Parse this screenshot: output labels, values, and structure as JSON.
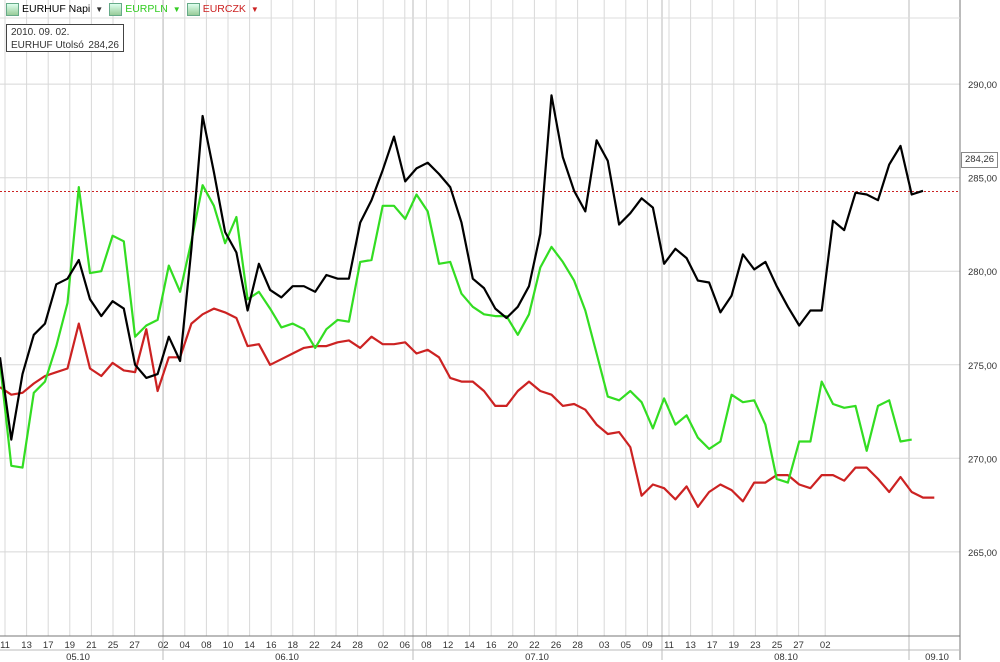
{
  "legend": [
    {
      "label": "EURHUF Napi",
      "color": "#000000"
    },
    {
      "label": "EURPLN",
      "color": "#33dd22"
    },
    {
      "label": "EURCZK",
      "color": "#cc2222"
    }
  ],
  "info": {
    "date": "2010. 09. 02.",
    "label": "EURHUF Utolsó",
    "value": "284,26"
  },
  "last_value_label": "284,26",
  "chart_data": {
    "type": "line",
    "y_ticks": [
      "265,00",
      "270,00",
      "275,00",
      "280,00",
      "285,00",
      "290,00"
    ],
    "y_tick_values": [
      265,
      270,
      275,
      280,
      285,
      290
    ],
    "ylim": [
      260.5,
      294.5
    ],
    "day_labels": [
      "11",
      "13",
      "17",
      "19",
      "21",
      "25",
      "27",
      "02",
      "04",
      "08",
      "10",
      "14",
      "16",
      "18",
      "22",
      "24",
      "28",
      "02",
      "06",
      "08",
      "12",
      "14",
      "16",
      "20",
      "22",
      "26",
      "28",
      "03",
      "05",
      "09",
      "11",
      "13",
      "17",
      "19",
      "23",
      "25",
      "27",
      "02"
    ],
    "month_labels": [
      {
        "label": "05.10",
        "after_day_index": 0,
        "span": [
          0,
          6
        ]
      },
      {
        "label": "06.10",
        "span": [
          7,
          16
        ]
      },
      {
        "label": "07.10",
        "span": [
          17,
          26
        ]
      },
      {
        "label": "08.10",
        "span": [
          27,
          36
        ]
      },
      {
        "label": "09.10",
        "span": [
          37,
          37
        ]
      }
    ],
    "reference_line": 284.26,
    "series": [
      {
        "name": "EURHUF Napi",
        "color": "#000000",
        "values": [
          275.4,
          271.0,
          274.5,
          276.6,
          277.2,
          279.3,
          279.6,
          280.6,
          278.5,
          277.6,
          278.4,
          278.0,
          275.0,
          274.3,
          274.5,
          276.5,
          275.2,
          281.2,
          288.3,
          285.3,
          282.1,
          281.0,
          277.9,
          280.4,
          279.0,
          278.6,
          279.2,
          279.2,
          278.9,
          279.8,
          279.6,
          279.6,
          282.6,
          283.8,
          285.4,
          287.2,
          284.8,
          285.5,
          285.8,
          285.2,
          284.5,
          282.6,
          279.6,
          279.1,
          278.0,
          277.5,
          278.1,
          279.2,
          282.0,
          289.4,
          286.1,
          284.3,
          283.2,
          287.0,
          285.9,
          282.5,
          283.1,
          283.9,
          283.4,
          280.4,
          281.2,
          280.7,
          279.5,
          279.4,
          277.8,
          278.7,
          280.9,
          280.1,
          280.5,
          279.2,
          278.1,
          277.1,
          277.9,
          277.9,
          282.7,
          282.2,
          284.2,
          284.1,
          283.8,
          285.7,
          286.7,
          284.1,
          284.3
        ]
      },
      {
        "name": "EURPLN",
        "color": "#33dd22",
        "values": [
          275.1,
          269.6,
          269.5,
          273.5,
          274.1,
          276.0,
          278.3,
          284.5,
          279.9,
          280.0,
          281.9,
          281.6,
          276.5,
          277.1,
          277.4,
          280.3,
          278.9,
          281.6,
          284.6,
          283.5,
          281.5,
          282.9,
          278.5,
          278.9,
          278.0,
          277.0,
          277.2,
          276.9,
          275.9,
          276.9,
          277.4,
          277.3,
          280.5,
          280.6,
          283.5,
          283.5,
          282.8,
          284.1,
          283.2,
          280.4,
          280.5,
          278.8,
          278.1,
          277.7,
          277.6,
          277.6,
          276.6,
          277.7,
          280.2,
          281.3,
          280.5,
          279.5,
          277.9,
          275.6,
          273.3,
          273.1,
          273.6,
          273.0,
          271.6,
          273.2,
          271.8,
          272.3,
          271.1,
          270.5,
          270.9,
          273.4,
          273.0,
          273.1,
          271.8,
          268.9,
          268.7,
          270.9,
          270.9,
          274.1,
          272.9,
          272.7,
          272.8,
          270.4,
          272.8,
          273.1,
          270.9,
          271.0
        ]
      },
      {
        "name": "EURCZK",
        "color": "#cc2222",
        "values": [
          273.8,
          273.4,
          273.5,
          274.0,
          274.4,
          274.6,
          274.8,
          277.2,
          274.8,
          274.4,
          275.1,
          274.7,
          274.6,
          276.9,
          273.6,
          275.4,
          275.4,
          277.2,
          277.7,
          278.0,
          277.8,
          277.5,
          276.0,
          276.1,
          275.0,
          275.3,
          275.6,
          275.9,
          276.0,
          276.0,
          276.2,
          276.3,
          275.9,
          276.5,
          276.1,
          276.1,
          276.2,
          275.6,
          275.8,
          275.4,
          274.3,
          274.1,
          274.1,
          273.6,
          272.8,
          272.8,
          273.6,
          274.1,
          273.6,
          273.4,
          272.8,
          272.9,
          272.6,
          271.8,
          271.3,
          271.4,
          270.6,
          268.0,
          268.6,
          268.4,
          267.8,
          268.5,
          267.4,
          268.2,
          268.6,
          268.3,
          267.7,
          268.7,
          268.7,
          269.1,
          269.1,
          268.6,
          268.4,
          269.1,
          269.1,
          268.8,
          269.5,
          269.5,
          268.9,
          268.2,
          269.0,
          268.2,
          267.9,
          267.9
        ]
      }
    ]
  }
}
